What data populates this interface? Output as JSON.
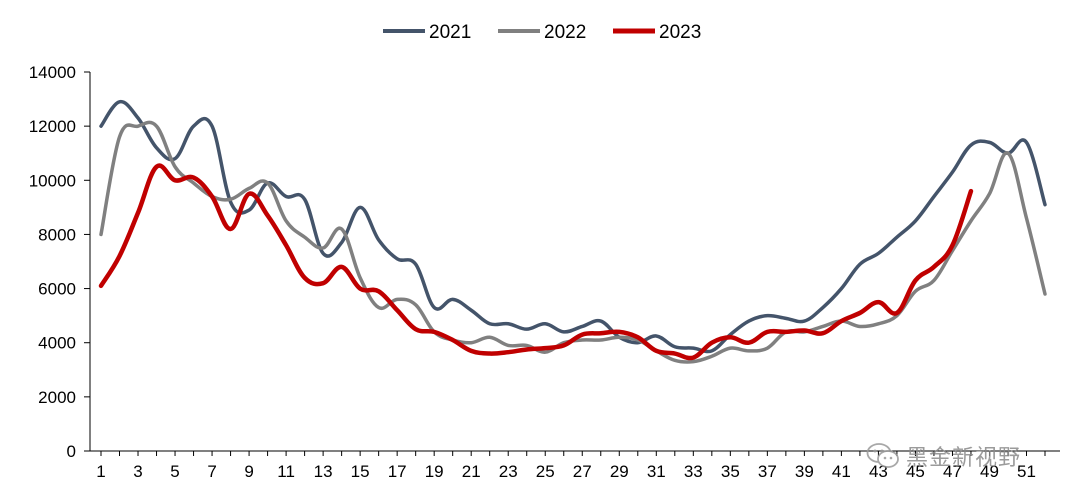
{
  "chart_data": {
    "type": "line",
    "title": "",
    "xlabel": "",
    "ylabel": "",
    "ylim": [
      0,
      14000
    ],
    "yticks": [
      0,
      2000,
      4000,
      6000,
      8000,
      10000,
      12000,
      14000
    ],
    "xlim": [
      1,
      52
    ],
    "xticks": [
      1,
      3,
      5,
      7,
      9,
      11,
      13,
      15,
      17,
      19,
      21,
      23,
      25,
      27,
      29,
      31,
      33,
      35,
      37,
      39,
      41,
      43,
      45,
      47,
      49,
      51
    ],
    "legend_position": "top-center",
    "grid": false,
    "series": [
      {
        "name": "2021",
        "color": "#44546A",
        "stroke": "normal",
        "x": [
          1,
          2,
          3,
          4,
          5,
          6,
          7,
          8,
          9,
          10,
          11,
          12,
          13,
          14,
          15,
          16,
          17,
          18,
          19,
          20,
          21,
          22,
          23,
          24,
          25,
          26,
          27,
          28,
          29,
          30,
          31,
          32,
          33,
          34,
          35,
          36,
          37,
          38,
          39,
          40,
          41,
          42,
          43,
          44,
          45,
          46,
          47,
          48,
          49,
          50,
          51,
          52
        ],
        "values": [
          12000,
          12900,
          12300,
          11200,
          10800,
          12000,
          12000,
          9200,
          8900,
          9900,
          9400,
          9300,
          7300,
          7700,
          9000,
          7800,
          7100,
          6900,
          5300,
          5600,
          5200,
          4700,
          4700,
          4500,
          4700,
          4400,
          4600,
          4800,
          4200,
          4000,
          4250,
          3850,
          3800,
          3700,
          4300,
          4800,
          5000,
          4900,
          4800,
          5300,
          6000,
          6900,
          7300,
          7900,
          8500,
          9400,
          10300,
          11300,
          11400,
          11000,
          11400,
          9100
        ]
      },
      {
        "name": "2022",
        "color": "#808080",
        "stroke": "normal",
        "x": [
          1,
          2,
          3,
          4,
          5,
          6,
          7,
          8,
          9,
          10,
          11,
          12,
          13,
          14,
          15,
          16,
          17,
          18,
          19,
          20,
          21,
          22,
          23,
          24,
          25,
          26,
          27,
          28,
          29,
          30,
          31,
          32,
          33,
          34,
          35,
          36,
          37,
          38,
          39,
          40,
          41,
          42,
          43,
          44,
          45,
          46,
          47,
          48,
          49,
          50,
          51,
          52
        ],
        "values": [
          8000,
          11600,
          12000,
          12000,
          10500,
          9900,
          9400,
          9300,
          9700,
          9900,
          8500,
          7900,
          7500,
          8200,
          6400,
          5300,
          5600,
          5400,
          4400,
          4100,
          4000,
          4200,
          3900,
          3900,
          3650,
          4000,
          4100,
          4100,
          4200,
          4100,
          3700,
          3350,
          3300,
          3500,
          3800,
          3700,
          3800,
          4400,
          4400,
          4600,
          4800,
          4600,
          4700,
          5000,
          5900,
          6300,
          7400,
          8500,
          9500,
          11000,
          8600,
          5800
        ]
      },
      {
        "name": "2023",
        "color": "#C00000",
        "stroke": "bold",
        "x": [
          1,
          2,
          3,
          4,
          5,
          6,
          7,
          8,
          9,
          10,
          11,
          12,
          13,
          14,
          15,
          16,
          17,
          18,
          19,
          20,
          21,
          22,
          23,
          24,
          25,
          26,
          27,
          28,
          29,
          30,
          31,
          32,
          33,
          34,
          35,
          36,
          37,
          38,
          39,
          40,
          41,
          42,
          43,
          44,
          45,
          46,
          47,
          48
        ],
        "values": [
          6100,
          7200,
          8800,
          10500,
          10000,
          10100,
          9400,
          8200,
          9500,
          8700,
          7600,
          6400,
          6200,
          6800,
          6000,
          5900,
          5200,
          4500,
          4400,
          4100,
          3700,
          3600,
          3650,
          3750,
          3800,
          3900,
          4300,
          4350,
          4400,
          4200,
          3700,
          3600,
          3450,
          4000,
          4200,
          4000,
          4400,
          4400,
          4450,
          4350,
          4800,
          5100,
          5500,
          5100,
          6300,
          6800,
          7600,
          9600
        ]
      }
    ]
  },
  "watermark": {
    "text": "黑金新视野",
    "icon": "wechat-icon"
  }
}
